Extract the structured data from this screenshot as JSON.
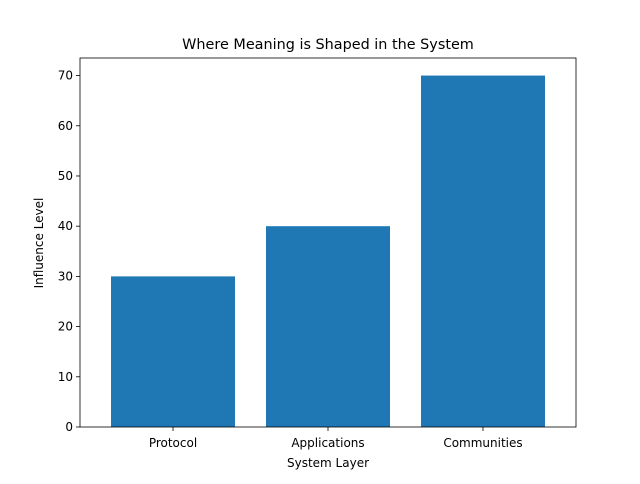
{
  "chart_data": {
    "type": "bar",
    "title": "Where Meaning is Shaped in the System",
    "xlabel": "System Layer",
    "ylabel": "Influence Level",
    "categories": [
      "Protocol",
      "Applications",
      "Communities"
    ],
    "values": [
      30,
      40,
      70
    ],
    "ylim": [
      0,
      73.5
    ],
    "yticks": [
      0,
      10,
      20,
      30,
      40,
      50,
      60,
      70
    ],
    "grid": false,
    "legend": "none",
    "bar_color": "#1f77b4"
  }
}
